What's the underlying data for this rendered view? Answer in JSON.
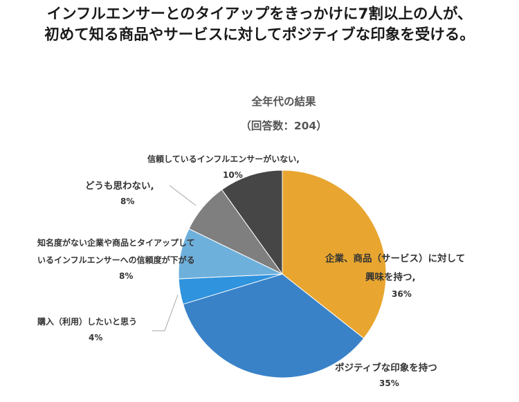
{
  "headline": {
    "line1": "インフルエンサーとのタイアップをきっかけに7割以上の人が、",
    "line2": "初めて知る商品やサービスに対してポジティブな印象を受ける。"
  },
  "chart_data": {
    "type": "pie",
    "title": "全年代の結果",
    "subtitle": "（回答数：204）",
    "slices": [
      {
        "label": "企業、商品（サービス）に対して興味を持つ",
        "label_lines": [
          "企業、商品（サービス）に対して",
          "興味を持つ,"
        ],
        "pct_text": "36%",
        "value": 36,
        "color": "#E8A630"
      },
      {
        "label": "ポジティブな印象を持つ",
        "label_lines": [
          "ポジティブな印象を持つ"
        ],
        "pct_text": "35%",
        "value": 35,
        "color": "#3A82C8"
      },
      {
        "label": "購入（利用）したいと思う",
        "label_lines": [
          "購入（利用）したいと思う"
        ],
        "pct_text": "4%",
        "value": 4,
        "color": "#2F93DE"
      },
      {
        "label": "知名度がない企業や商品とタイアップしているインフルエンサーへの信頼度が下がる",
        "label_lines": [
          "知名度がない企業や商品とタイアップして",
          "いるインフルエンサーへの信頼度が下がる"
        ],
        "pct_text": "8%",
        "value": 8,
        "color": "#6EB0DC"
      },
      {
        "label": "どうも思わない",
        "label_lines": [
          "どうも思わない,"
        ],
        "pct_text": "8%",
        "value": 8,
        "color": "#7F7F7F"
      },
      {
        "label": "信頼しているインフルエンサーがいない",
        "label_lines": [
          "信頼しているインフルエンサーがいない,"
        ],
        "pct_text": "10%",
        "value": 10,
        "color": "#464646"
      }
    ]
  }
}
